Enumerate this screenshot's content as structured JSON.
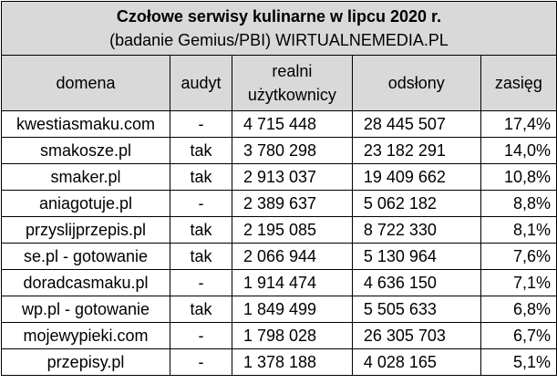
{
  "header": {
    "title": "Czołowe serwisy kulinarne w lipcu 2020 r.",
    "subtitle": "(badanie Gemius/PBI) WIRTUALNEMEDIA.PL"
  },
  "table": {
    "columns": [
      "domena",
      "audyt",
      "realni użytkownicy",
      "odsłony",
      "zasięg"
    ],
    "rows": [
      [
        "kwestiasmaku.com",
        "-",
        "4 715 448",
        "28 445 507",
        "17,4%"
      ],
      [
        "smakosze.pl",
        "tak",
        "3 780 298",
        "23 182 291",
        "14,0%"
      ],
      [
        "smaker.pl",
        "tak",
        "2 913 037",
        "19 409 662",
        "10,8%"
      ],
      [
        "aniagotuje.pl",
        "-",
        "2 389 637",
        "5 062 182",
        "8,8%"
      ],
      [
        "przyslijprzepis.pl",
        "tak",
        "2 195 085",
        "8 722 330",
        "8,1%"
      ],
      [
        "se.pl - gotowanie",
        "tak",
        "2 066 944",
        "5 130 964",
        "7,6%"
      ],
      [
        "doradcasmaku.pl",
        "-",
        "1 914 474",
        "4 636 150",
        "7,1%"
      ],
      [
        "wp.pl - gotowanie",
        "tak",
        "1 849 499",
        "5 505 633",
        "6,8%"
      ],
      [
        "mojewypieki.com",
        "-",
        "1 798 028",
        "26 305 703",
        "6,7%"
      ],
      [
        "przepisy.pl",
        "-",
        "1 378 188",
        "4 028 165",
        "5,1%"
      ]
    ]
  }
}
